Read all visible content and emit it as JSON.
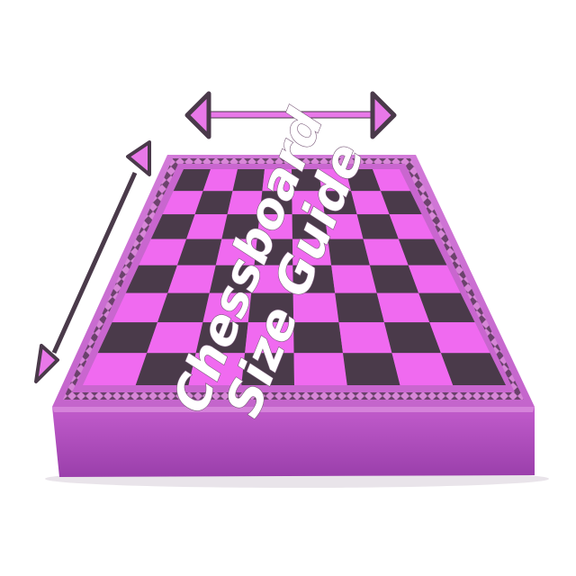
{
  "image": {
    "title_line1": "Chessboard",
    "title_line2": "Size Guide"
  },
  "colors": {
    "background": "#ffffff",
    "light_square": "#f06af0",
    "dark_square": "#4a3a4a",
    "frame": "#c86ad0",
    "frame_side": "#b24ec0",
    "arrow": "#e878e8",
    "arrow_outline": "#4a3a4a",
    "title_text": "#ffffff"
  },
  "board": {
    "rows": 8,
    "cols": 8
  },
  "icons": [
    "horizontal-width-arrow-icon",
    "diagonal-length-arrow-icon"
  ]
}
